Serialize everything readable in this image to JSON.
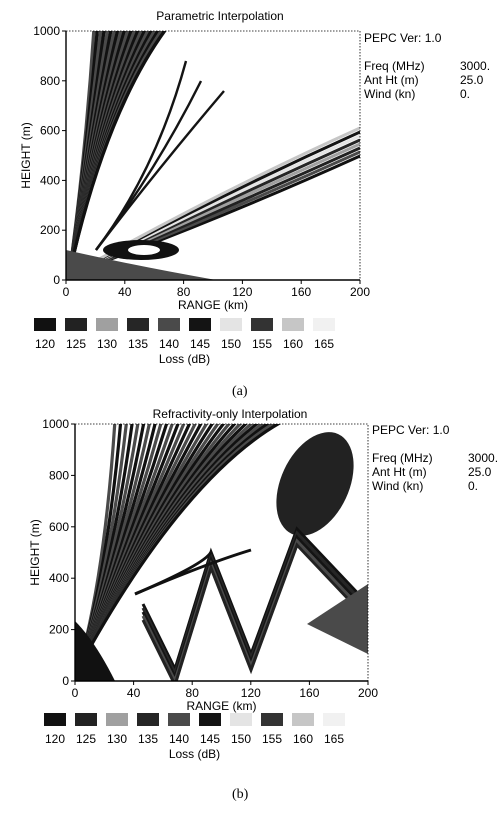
{
  "chart_data": [
    {
      "type": "heatmap",
      "title": "Parametric Interpolation",
      "xlabel": "RANGE (km)",
      "ylabel": "HEIGHT (m)",
      "xlim": [
        0,
        200
      ],
      "ylim": [
        0,
        1000
      ],
      "x_ticks": [
        0,
        40,
        80,
        120,
        160,
        200
      ],
      "y_ticks": [
        0,
        200,
        400,
        600,
        800,
        1000
      ],
      "colorbar": {
        "label": "Loss (dB)",
        "levels": [
          120,
          125,
          130,
          135,
          140,
          145,
          150,
          155,
          160,
          165
        ]
      },
      "info": [
        {
          "label": "PEPC Ver: 1.0",
          "value": ""
        },
        {
          "label": "Freq (MHz)",
          "value": "3000."
        },
        {
          "label": "Ant Ht (m)",
          "value": "25.0"
        },
        {
          "label": "Wind (kn)",
          "value": "0."
        }
      ],
      "caption": "(a)"
    },
    {
      "type": "heatmap",
      "title": "Refractivity-only Interpolation",
      "xlabel": "RANGE (km)",
      "ylabel": "HEIGHT (m)",
      "xlim": [
        0,
        200
      ],
      "ylim": [
        0,
        1000
      ],
      "x_ticks": [
        0,
        40,
        80,
        120,
        160,
        200
      ],
      "y_ticks": [
        0,
        200,
        400,
        600,
        800,
        1000
      ],
      "colorbar": {
        "label": "Loss (dB)",
        "levels": [
          120,
          125,
          130,
          135,
          140,
          145,
          150,
          155,
          160,
          165
        ]
      },
      "info": [
        {
          "label": "PEPC Ver: 1.0",
          "value": ""
        },
        {
          "label": "Freq (MHz)",
          "value": "3000."
        },
        {
          "label": "Ant Ht (m)",
          "value": "25.0"
        },
        {
          "label": "Wind (kn)",
          "value": "0."
        }
      ],
      "caption": "(b)"
    }
  ],
  "level_colors": [
    "#111111",
    "#222222",
    "#a0a0a0",
    "#262626",
    "#4a4a4a",
    "#141414",
    "#e4e4e4",
    "#333333",
    "#c6c6c6",
    "#f1f1f1"
  ]
}
